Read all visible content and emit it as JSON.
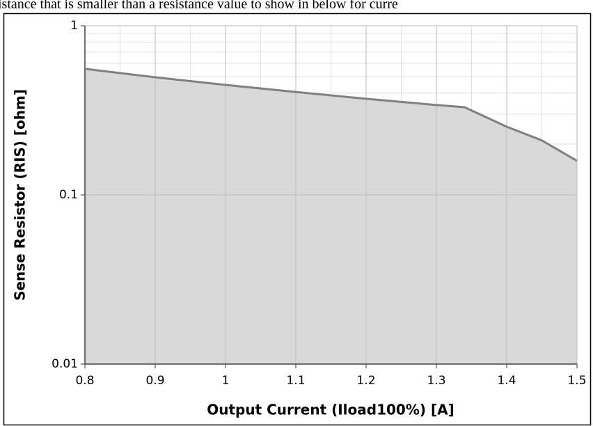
{
  "caption": "istance that is smaller than a resistance value to show in below for curre",
  "chart_data": {
    "type": "area",
    "x_label": "Output Current (Iload100%) [A]",
    "y_label": "Sense Resistor  (RIS) [ohm]",
    "x": [
      0.8,
      0.9,
      1.0,
      1.1,
      1.2,
      1.3,
      1.34,
      1.4,
      1.45,
      1.5
    ],
    "values": [
      0.556,
      0.496,
      0.447,
      0.406,
      0.37,
      0.34,
      0.33,
      0.253,
      0.21,
      0.159
    ],
    "color": "#808080",
    "fill": "#d9d9d9",
    "xlim": [
      0.8,
      1.5
    ],
    "xticks": [
      0.8,
      0.9,
      1,
      1.1,
      1.2,
      1.3,
      1.4,
      1.5
    ],
    "ylim": [
      0.01,
      1
    ],
    "yticks": [
      0.01,
      0.1,
      1
    ],
    "log_y": true,
    "grid": true,
    "minor_grid": true
  }
}
